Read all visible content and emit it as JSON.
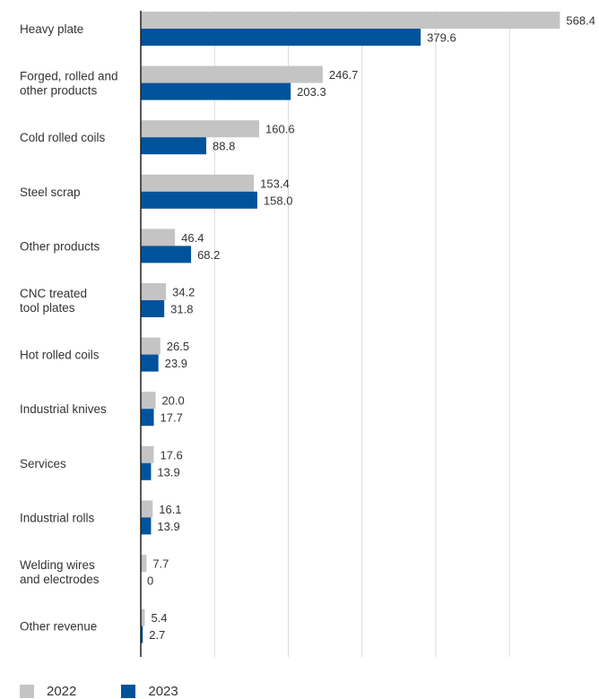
{
  "chart_data": {
    "type": "bar",
    "orientation": "horizontal",
    "categories": [
      [
        "Heavy plate"
      ],
      [
        "Forged, rolled and",
        "other products"
      ],
      [
        "Cold rolled coils"
      ],
      [
        "Steel scrap"
      ],
      [
        "Other products"
      ],
      [
        "CNC treated",
        "tool plates"
      ],
      [
        "Hot rolled coils"
      ],
      [
        "Industrial knives"
      ],
      [
        "Services"
      ],
      [
        "Industrial rolls"
      ],
      [
        "Welding wires",
        "and electrodes"
      ],
      [
        "Other revenue"
      ]
    ],
    "series": [
      {
        "name": "2022",
        "color": "#c4c4c4",
        "values": [
          568.4,
          246.7,
          160.6,
          153.4,
          46.4,
          34.2,
          26.5,
          20.0,
          17.6,
          16.1,
          7.7,
          5.4
        ],
        "labels": [
          "568.4",
          "246.7",
          "160.6",
          "153.4",
          "46.4",
          "34.2",
          "26.5",
          "20.0",
          "17.6",
          "16.1",
          "7.7",
          "5.4"
        ]
      },
      {
        "name": "2023",
        "color": "#00539b",
        "values": [
          379.6,
          203.3,
          88.8,
          158.0,
          68.2,
          31.8,
          23.9,
          17.7,
          13.9,
          13.9,
          0,
          2.7
        ],
        "labels": [
          "379.6",
          "203.3",
          "88.8",
          "158.0",
          "68.2",
          "31.8",
          "23.9",
          "17.7",
          "13.9",
          "13.9",
          "0",
          "2.7"
        ]
      }
    ],
    "xlim": [
      0,
      600
    ],
    "grid": true,
    "legend_position": "bottom-left"
  }
}
